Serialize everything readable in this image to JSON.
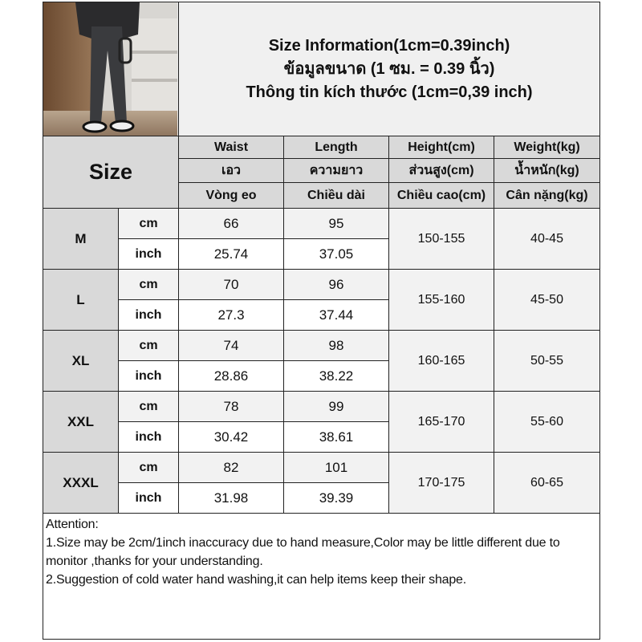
{
  "title": {
    "line1": "Size Information(1cm=0.39inch)",
    "line2": "ข้อมูลขนาด (1 ซม. = 0.39 นิ้ว)",
    "line3": "Thông tin kích thước (1cm=0,39 inch)"
  },
  "header": {
    "size_label": "Size",
    "columns": [
      {
        "en": "Waist",
        "th": "เอว",
        "vi": "Vòng eo"
      },
      {
        "en": "Length",
        "th": "ความยาว",
        "vi": "Chiều dài"
      },
      {
        "en": "Height(cm)",
        "th": "ส่วนสูง(cm)",
        "vi": "Chiều cao(cm)"
      },
      {
        "en": "Weight(kg)",
        "th": "น้ำหนัก(kg)",
        "vi": "Cân nặng(kg)"
      }
    ]
  },
  "units": {
    "cm": "cm",
    "inch": "inch"
  },
  "rows": [
    {
      "size": "M",
      "waist_cm": "66",
      "length_cm": "95",
      "waist_inch": "25.74",
      "length_inch": "37.05",
      "height": "150-155",
      "weight": "40-45"
    },
    {
      "size": "L",
      "waist_cm": "70",
      "length_cm": "96",
      "waist_inch": "27.3",
      "length_inch": "37.44",
      "height": "155-160",
      "weight": "45-50"
    },
    {
      "size": "XL",
      "waist_cm": "74",
      "length_cm": "98",
      "waist_inch": "28.86",
      "length_inch": "38.22",
      "height": "160-165",
      "weight": "50-55"
    },
    {
      "size": "XXL",
      "waist_cm": "78",
      "length_cm": "99",
      "waist_inch": "30.42",
      "length_inch": "38.61",
      "height": "165-170",
      "weight": "55-60"
    },
    {
      "size": "XXXL",
      "waist_cm": "82",
      "length_cm": "101",
      "waist_inch": "31.98",
      "length_inch": "39.39",
      "height": "170-175",
      "weight": "60-65"
    }
  ],
  "notes": {
    "heading": "Attention:",
    "items": [
      "1.Size may be 2cm/1inch inaccuracy due to hand measure,Color may be little different due to monitor ,thanks for your understanding.",
      "2.Suggestion of cold water hand washing,it can help items keep their shape."
    ]
  },
  "colors": {
    "header_bg": "#d9d9d9",
    "title_bg": "#f0f0f0",
    "cm_row_bg": "#f2f2f2",
    "border": "#222222"
  }
}
